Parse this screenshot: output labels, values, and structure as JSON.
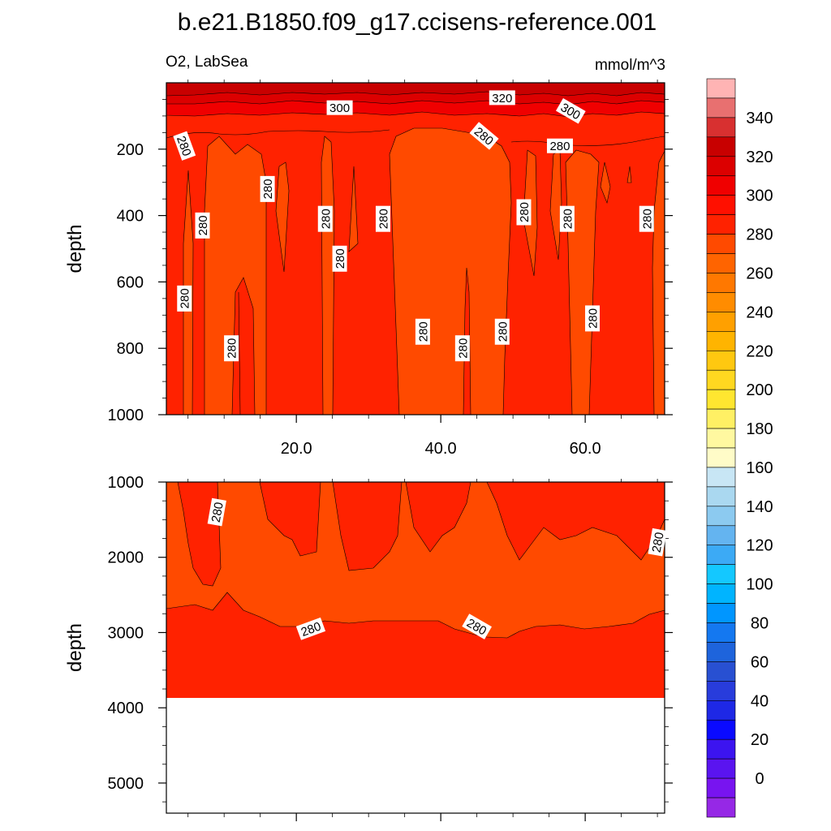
{
  "title": "b.e21.B1850.f09_g17.ccisens-reference.001",
  "subtitle_left": "O2, LabSea",
  "subtitle_right": "mmol/m^3",
  "colors": {
    "fill_280": "#ff2200",
    "fill_270": "#ff4a00",
    "line": "#000000"
  },
  "chart_data": [
    {
      "type": "contour",
      "panel": "upper",
      "variable": "O2",
      "region": "LabSea",
      "units": "mmol/m^3",
      "xlabel": "",
      "ylabel": "depth",
      "xlim": [
        2,
        71
      ],
      "ylim": [
        1000,
        0
      ],
      "xticks": [
        20,
        40,
        60
      ],
      "xtick_labels": [
        "20.0",
        "40.0",
        "60.0"
      ],
      "yticks": [
        200,
        400,
        600,
        800,
        1000
      ],
      "ytick_labels": [
        "200",
        "400",
        "600",
        "800",
        "1000"
      ],
      "contour_labels": [
        {
          "text": "300",
          "x": 26,
          "depth": 75,
          "angle": 0
        },
        {
          "text": "320",
          "x": 48.5,
          "depth": 45,
          "angle": 0
        },
        {
          "text": "300",
          "x": 58,
          "depth": 85,
          "angle": 30
        },
        {
          "text": "280",
          "x": 4.5,
          "depth": 190,
          "angle": 70
        },
        {
          "text": "280",
          "x": 46,
          "depth": 160,
          "angle": 40
        },
        {
          "text": "280",
          "x": 56.5,
          "depth": 190,
          "angle": 0
        },
        {
          "text": "280",
          "x": 16,
          "depth": 320,
          "angle": -90
        },
        {
          "text": "280",
          "x": 7,
          "depth": 430,
          "angle": -90
        },
        {
          "text": "280",
          "x": 24,
          "depth": 410,
          "angle": -90
        },
        {
          "text": "280",
          "x": 32,
          "depth": 410,
          "angle": -90
        },
        {
          "text": "280",
          "x": 26,
          "depth": 530,
          "angle": -90
        },
        {
          "text": "280",
          "x": 51.5,
          "depth": 390,
          "angle": -90
        },
        {
          "text": "280",
          "x": 57.5,
          "depth": 410,
          "angle": -90
        },
        {
          "text": "280",
          "x": 68.5,
          "depth": 410,
          "angle": -90
        },
        {
          "text": "280",
          "x": 4.5,
          "depth": 650,
          "angle": -90
        },
        {
          "text": "280",
          "x": 11,
          "depth": 800,
          "angle": -90
        },
        {
          "text": "280",
          "x": 37.5,
          "depth": 750,
          "angle": -90
        },
        {
          "text": "280",
          "x": 43,
          "depth": 800,
          "angle": -90
        },
        {
          "text": "280",
          "x": 48.5,
          "depth": 750,
          "angle": -90
        },
        {
          "text": "280",
          "x": 61,
          "depth": 710,
          "angle": -90
        }
      ]
    },
    {
      "type": "contour",
      "panel": "lower",
      "variable": "O2",
      "region": "LabSea",
      "units": "mmol/m^3",
      "xlabel": "",
      "ylabel": "depth",
      "xlim": [
        2,
        71
      ],
      "ylim": [
        5400,
        1000
      ],
      "yticks": [
        1000,
        2000,
        3000,
        4000,
        5000
      ],
      "ytick_labels": [
        "1000",
        "2000",
        "3000",
        "4000",
        "5000"
      ],
      "data_max_depth": 3850,
      "contour_labels": [
        {
          "text": "280",
          "x": 9,
          "depth": 1400,
          "angle": -80
        },
        {
          "text": "280",
          "x": 70,
          "depth": 1800,
          "angle": -80
        },
        {
          "text": "280",
          "x": 22,
          "depth": 2950,
          "angle": -20
        },
        {
          "text": "280",
          "x": 45,
          "depth": 2920,
          "angle": 30
        }
      ]
    }
  ],
  "colorbar": {
    "labels": [
      "340",
      "320",
      "300",
      "280",
      "260",
      "240",
      "220",
      "200",
      "180",
      "160",
      "140",
      "120",
      "100",
      "80",
      "60",
      "40",
      "20",
      "0"
    ],
    "colors": [
      "#ffb4b4",
      "#e87070",
      "#d83030",
      "#c80000",
      "#dc0000",
      "#f00000",
      "#ff1000",
      "#ff2200",
      "#ff4a00",
      "#ff6400",
      "#ff7800",
      "#ff8c00",
      "#ffa000",
      "#ffb400",
      "#ffc810",
      "#ffd820",
      "#ffe630",
      "#fff064",
      "#fff8a0",
      "#fffcc8",
      "#c8e6f5",
      "#aad8f0",
      "#8ccaf0",
      "#64b4f0",
      "#3caaf5",
      "#14c8ff",
      "#00b4ff",
      "#0096ff",
      "#1478f0",
      "#1e64dc",
      "#2850d2",
      "#283cdc",
      "#1e28e6",
      "#0a0aff",
      "#3c14f0",
      "#5a14f0",
      "#7814f0",
      "#9628e6"
    ]
  }
}
